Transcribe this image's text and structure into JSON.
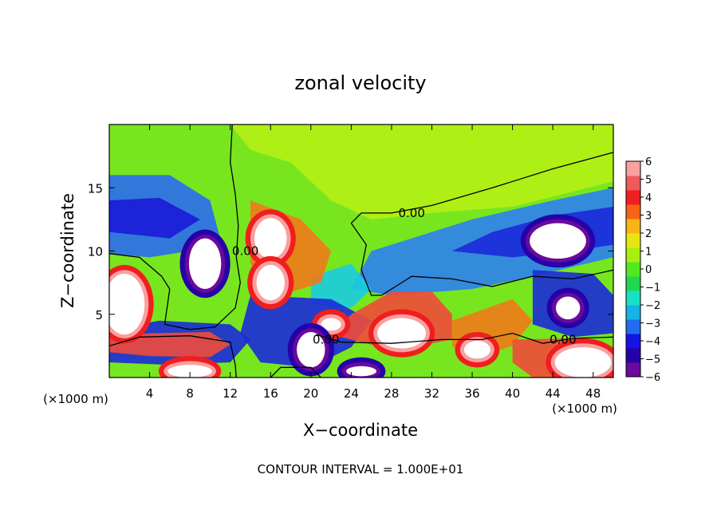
{
  "chart_data": {
    "type": "heatmap",
    "title": "zonal velocity",
    "xlabel": "X−coordinate",
    "ylabel": "Z−coordinate",
    "x_unit_left": "(×1000 m)",
    "x_unit_right": "(×1000 m)",
    "footer": "CONTOUR INTERVAL = 1.000E+01",
    "xlim": [
      0,
      50
    ],
    "ylim": [
      0,
      20
    ],
    "x_ticks": [
      4,
      8,
      12,
      16,
      20,
      24,
      28,
      32,
      36,
      40,
      44,
      48
    ],
    "y_ticks": [
      5,
      10,
      15
    ],
    "colorbar": {
      "vmin": -6,
      "vmax": 6,
      "ticks": [
        6,
        5,
        4,
        3,
        2,
        1,
        0,
        -1,
        -2,
        -3,
        -4,
        -5,
        -6
      ],
      "colors": [
        "#6a0a9c",
        "#2600a8",
        "#1414e6",
        "#1e6cf0",
        "#14b4e6",
        "#18e0c4",
        "#20d850",
        "#50e81e",
        "#a8ee10",
        "#e6e614",
        "#f8b414",
        "#f86414",
        "#f01e1e",
        "#f05a5a",
        "#f8a0a0"
      ]
    },
    "contour_label": "0.00",
    "contour_label_positions": [
      [
        30,
        13
      ],
      [
        13.5,
        10
      ],
      [
        21.5,
        3
      ],
      [
        45,
        3
      ]
    ],
    "features": [
      {
        "kind": "positive_core",
        "x": 1.5,
        "z": 5.8,
        "rx": 2.0,
        "rz": 2.4
      },
      {
        "kind": "positive_core",
        "x": 16,
        "z": 11,
        "rx": 1.6,
        "rz": 1.6
      },
      {
        "kind": "positive_core",
        "x": 16,
        "z": 7.5,
        "rx": 1.4,
        "rz": 1.4
      },
      {
        "kind": "positive_core",
        "x": 29,
        "z": 3.5,
        "rx": 2.4,
        "rz": 1.2
      },
      {
        "kind": "positive_core",
        "x": 36.5,
        "z": 2.2,
        "rx": 1.3,
        "rz": 0.7
      },
      {
        "kind": "positive_core",
        "x": 47,
        "z": 1.2,
        "rx": 2.8,
        "rz": 1.2
      },
      {
        "kind": "positive_core",
        "x": 8,
        "z": 0.5,
        "rx": 2.2,
        "rz": 0.5
      },
      {
        "kind": "positive_core",
        "x": 22,
        "z": 4.2,
        "rx": 1.0,
        "rz": 0.5
      },
      {
        "kind": "negative_core",
        "x": 9.5,
        "z": 9.0,
        "rx": 1.6,
        "rz": 2.0
      },
      {
        "kind": "negative_core",
        "x": 44.5,
        "z": 10.8,
        "rx": 2.8,
        "rz": 1.4
      },
      {
        "kind": "negative_core",
        "x": 45.5,
        "z": 5.5,
        "rx": 1.2,
        "rz": 0.9
      },
      {
        "kind": "negative_core",
        "x": 20,
        "z": 2.2,
        "rx": 1.4,
        "rz": 1.4
      },
      {
        "kind": "negative_core",
        "x": 25,
        "z": 0.5,
        "rx": 1.5,
        "rz": 0.4
      }
    ]
  }
}
